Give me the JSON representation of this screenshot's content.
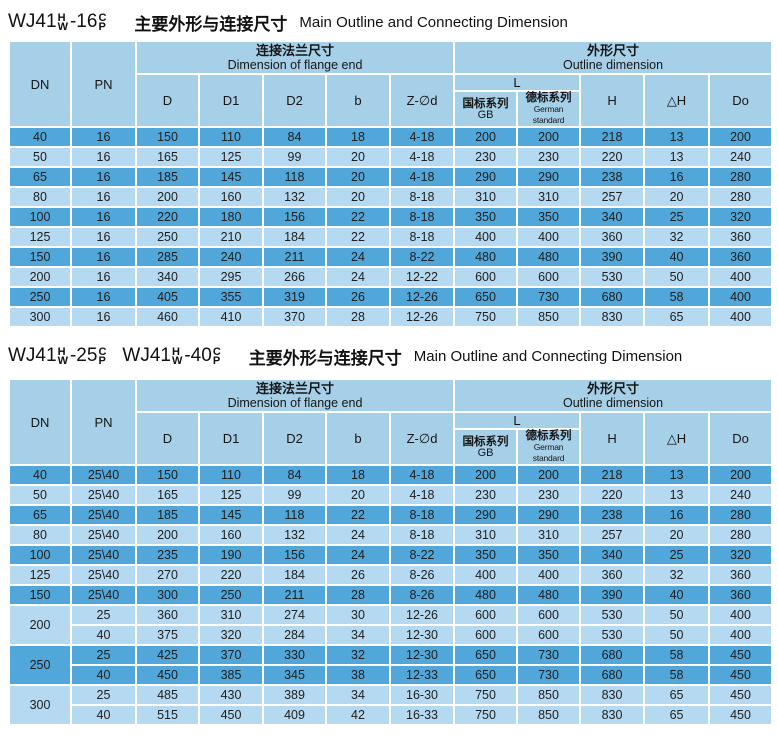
{
  "colors": {
    "row_dark": "#52a7da",
    "row_light": "#b5d9f0",
    "header_bg": "#a6cfe8",
    "grid": "#ffffff",
    "text": "#1f1f1f"
  },
  "header": {
    "dn": "DN",
    "pn": "PN",
    "flange_cn": "连接法兰尺寸",
    "flange_en": "Dimension of flange end",
    "outline_cn": "外形尺寸",
    "outline_en": "Outline dimension",
    "d": "D",
    "d1": "D1",
    "d2": "D2",
    "b": "b",
    "zd": "Z-∅d",
    "l": "L",
    "gb_cn": "国标系列",
    "gb_en": "GB",
    "de_cn": "德标系列",
    "de_en": "German standard",
    "h": "H",
    "dh": "△H",
    "do_": "Do"
  },
  "table1": {
    "title": {
      "model1": {
        "prefix": "WJ41",
        "sup": "H",
        "sub": "W",
        "rating": "-16",
        "sup2": "C",
        "sub2": "P"
      },
      "cn": "主要外形与连接尺寸",
      "en": "Main Outline and Connecting Dimension"
    },
    "rows": [
      {
        "dn": "40",
        "pn": "16",
        "cells": [
          "150",
          "110",
          "84",
          "18",
          "4-18",
          "200",
          "200",
          "218",
          "13",
          "200"
        ],
        "shade": "dark"
      },
      {
        "dn": "50",
        "pn": "16",
        "cells": [
          "165",
          "125",
          "99",
          "20",
          "4-18",
          "230",
          "230",
          "220",
          "13",
          "240"
        ],
        "shade": "light"
      },
      {
        "dn": "65",
        "pn": "16",
        "cells": [
          "185",
          "145",
          "118",
          "20",
          "4-18",
          "290",
          "290",
          "238",
          "16",
          "280"
        ],
        "shade": "dark"
      },
      {
        "dn": "80",
        "pn": "16",
        "cells": [
          "200",
          "160",
          "132",
          "20",
          "8-18",
          "310",
          "310",
          "257",
          "20",
          "280"
        ],
        "shade": "light"
      },
      {
        "dn": "100",
        "pn": "16",
        "cells": [
          "220",
          "180",
          "156",
          "22",
          "8-18",
          "350",
          "350",
          "340",
          "25",
          "320"
        ],
        "shade": "dark"
      },
      {
        "dn": "125",
        "pn": "16",
        "cells": [
          "250",
          "210",
          "184",
          "22",
          "8-18",
          "400",
          "400",
          "360",
          "32",
          "360"
        ],
        "shade": "light"
      },
      {
        "dn": "150",
        "pn": "16",
        "cells": [
          "285",
          "240",
          "211",
          "24",
          "8-22",
          "480",
          "480",
          "390",
          "40",
          "360"
        ],
        "shade": "dark"
      },
      {
        "dn": "200",
        "pn": "16",
        "cells": [
          "340",
          "295",
          "266",
          "24",
          "12-22",
          "600",
          "600",
          "530",
          "50",
          "400"
        ],
        "shade": "light"
      },
      {
        "dn": "250",
        "pn": "16",
        "cells": [
          "405",
          "355",
          "319",
          "26",
          "12-26",
          "650",
          "730",
          "680",
          "58",
          "400"
        ],
        "shade": "dark"
      },
      {
        "dn": "300",
        "pn": "16",
        "cells": [
          "460",
          "410",
          "370",
          "28",
          "12-26",
          "750",
          "850",
          "830",
          "65",
          "400"
        ],
        "shade": "light"
      }
    ]
  },
  "table2": {
    "title": {
      "model1": {
        "prefix": "WJ41",
        "sup": "H",
        "sub": "W",
        "rating": "-25",
        "sup2": "C",
        "sub2": "P"
      },
      "model2": {
        "prefix": "WJ41",
        "sup": "H",
        "sub": "W",
        "rating": "-40",
        "sup2": "C",
        "sub2": "P"
      },
      "cn": "主要外形与连接尺寸",
      "en": "Main Outline and Connecting Dimension"
    },
    "rows": [
      {
        "dn": "40",
        "pn": "25\\40",
        "cells": [
          "150",
          "110",
          "84",
          "18",
          "4-18",
          "200",
          "200",
          "218",
          "13",
          "200"
        ],
        "shade": "dark"
      },
      {
        "dn": "50",
        "pn": "25\\40",
        "cells": [
          "165",
          "125",
          "99",
          "20",
          "4-18",
          "230",
          "230",
          "220",
          "13",
          "240"
        ],
        "shade": "light"
      },
      {
        "dn": "65",
        "pn": "25\\40",
        "cells": [
          "185",
          "145",
          "118",
          "22",
          "8-18",
          "290",
          "290",
          "238",
          "16",
          "280"
        ],
        "shade": "dark"
      },
      {
        "dn": "80",
        "pn": "25\\40",
        "cells": [
          "200",
          "160",
          "132",
          "24",
          "8-18",
          "310",
          "310",
          "257",
          "20",
          "280"
        ],
        "shade": "light"
      },
      {
        "dn": "100",
        "pn": "25\\40",
        "cells": [
          "235",
          "190",
          "156",
          "24",
          "8-22",
          "350",
          "350",
          "340",
          "25",
          "320"
        ],
        "shade": "dark"
      },
      {
        "dn": "125",
        "pn": "25\\40",
        "cells": [
          "270",
          "220",
          "184",
          "26",
          "8-26",
          "400",
          "400",
          "360",
          "32",
          "360"
        ],
        "shade": "light"
      },
      {
        "dn": "150",
        "pn": "25\\40",
        "cells": [
          "300",
          "250",
          "211",
          "28",
          "8-26",
          "480",
          "480",
          "390",
          "40",
          "360"
        ],
        "shade": "dark"
      },
      {
        "dn": "200",
        "dn_rowspan": 2,
        "pn": "25",
        "cells": [
          "360",
          "310",
          "274",
          "30",
          "12-26",
          "600",
          "600",
          "530",
          "50",
          "400"
        ],
        "shade": "light"
      },
      {
        "pn": "40",
        "cells": [
          "375",
          "320",
          "284",
          "34",
          "12-30",
          "600",
          "600",
          "530",
          "50",
          "400"
        ],
        "shade": "light"
      },
      {
        "dn": "250",
        "dn_rowspan": 2,
        "pn": "25",
        "cells": [
          "425",
          "370",
          "330",
          "32",
          "12-30",
          "650",
          "730",
          "680",
          "58",
          "450"
        ],
        "shade": "dark"
      },
      {
        "pn": "40",
        "cells": [
          "450",
          "385",
          "345",
          "38",
          "12-33",
          "650",
          "730",
          "680",
          "58",
          "450"
        ],
        "shade": "dark"
      },
      {
        "dn": "300",
        "dn_rowspan": 2,
        "pn": "25",
        "cells": [
          "485",
          "430",
          "389",
          "34",
          "16-30",
          "750",
          "850",
          "830",
          "65",
          "450"
        ],
        "shade": "light"
      },
      {
        "pn": "40",
        "cells": [
          "515",
          "450",
          "409",
          "42",
          "16-33",
          "750",
          "850",
          "830",
          "65",
          "450"
        ],
        "shade": "light"
      }
    ]
  }
}
